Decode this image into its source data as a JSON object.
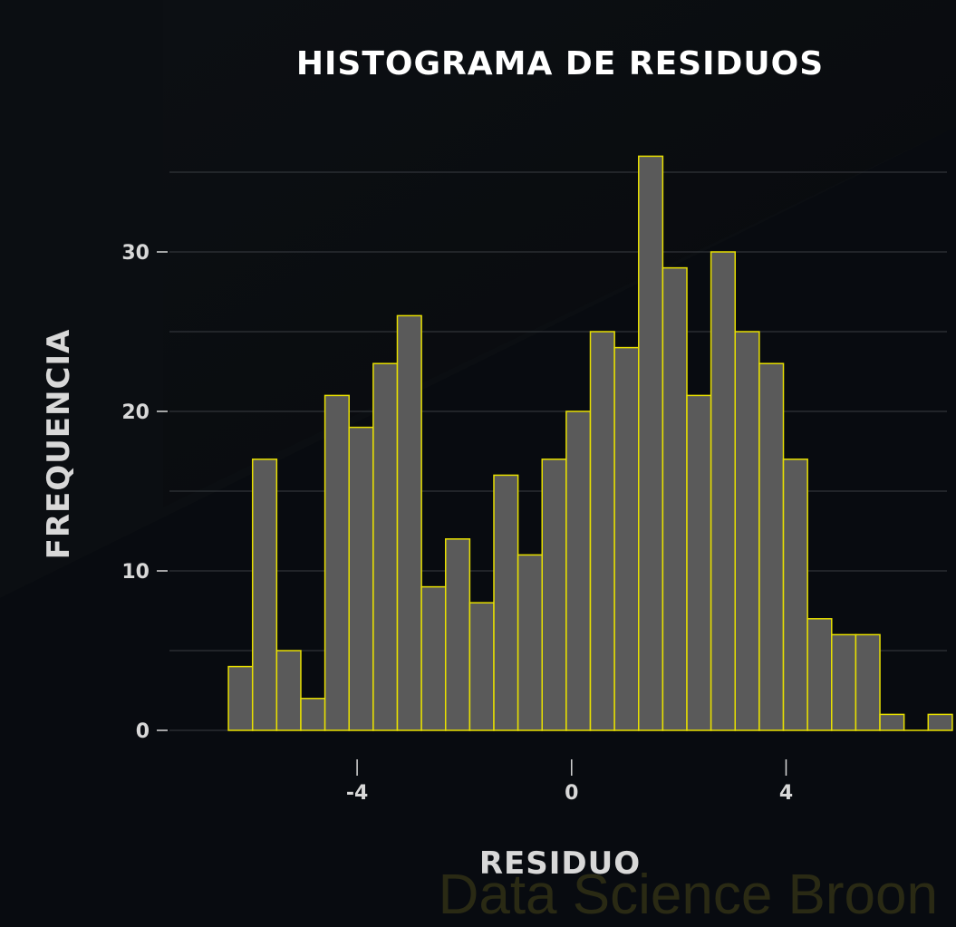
{
  "chart_data": {
    "type": "bar",
    "title": "HISTOGRAMA DE RESIDUOS",
    "xlabel": "RESIDUO",
    "ylabel": "FREQUENCIA",
    "bin_start": -6.4,
    "bin_width": 0.45,
    "values": [
      4,
      17,
      5,
      2,
      21,
      19,
      23,
      26,
      9,
      12,
      8,
      16,
      11,
      17,
      20,
      25,
      24,
      36,
      29,
      21,
      30,
      25,
      23,
      17,
      7,
      6,
      6,
      1,
      0,
      1
    ],
    "xlim": [
      -7.5,
      7.0
    ],
    "ylim": [
      0,
      38
    ],
    "x_ticks": [
      -4,
      0,
      4
    ],
    "x_tick_labels": [
      "-4",
      "0",
      "4"
    ],
    "y_ticks": [
      0,
      10,
      20,
      30
    ],
    "y_tick_labels": [
      "0",
      "10",
      "20",
      "30"
    ],
    "y_minor_grid": [
      5,
      15,
      25,
      35
    ],
    "grid": true,
    "bar_fill": "#5a5a5a",
    "bar_edge": "#e8e000",
    "background": "#080b10"
  },
  "watermark": "Data Science Broon"
}
